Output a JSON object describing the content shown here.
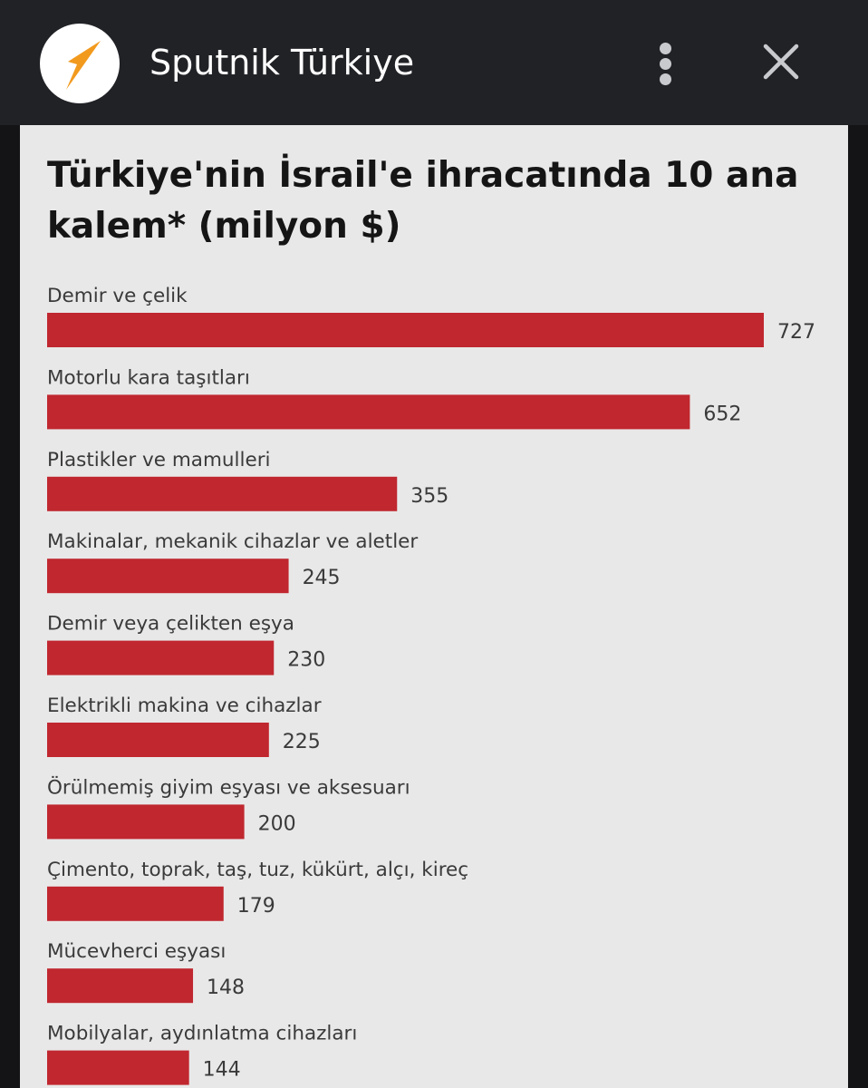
{
  "app": {
    "title": "Sputnik Türkiye",
    "icons": {
      "logo": "sputnik-logo-icon",
      "more": "more-vertical-icon",
      "close": "close-icon"
    },
    "colors": {
      "topbar": "#212226",
      "logo_arrow": "#f29a1e"
    }
  },
  "chart_data": {
    "type": "bar",
    "orientation": "horizontal",
    "title": "Türkiye'nin İsrail'e ihracatında 10 ana kalem* (milyon $)",
    "categories": [
      "Demir ve çelik",
      "Motorlu kara taşıtları",
      "Plastikler ve mamulleri",
      "Makinalar, mekanik cihazlar ve aletler",
      "Demir veya çelikten eşya",
      "Elektrikli makina ve cihazlar",
      "Örülmemiş giyim eşyası ve aksesuarı",
      "Çimento, toprak, taş, tuz, kükürt, alçı, kireç",
      "Mücevherci eşyası",
      "Mobilyalar, aydınlatma cihazları"
    ],
    "values": [
      727,
      652,
      355,
      245,
      230,
      225,
      200,
      179,
      148,
      144
    ],
    "data_labels": [
      "727",
      "652",
      "355",
      "245",
      "230",
      "225",
      "200",
      "179",
      "148",
      "144"
    ],
    "bar_color": "#c0272f",
    "background_color": "#e9e8e8",
    "grid": false,
    "legend": "none",
    "xlabel": "",
    "ylabel": ""
  }
}
